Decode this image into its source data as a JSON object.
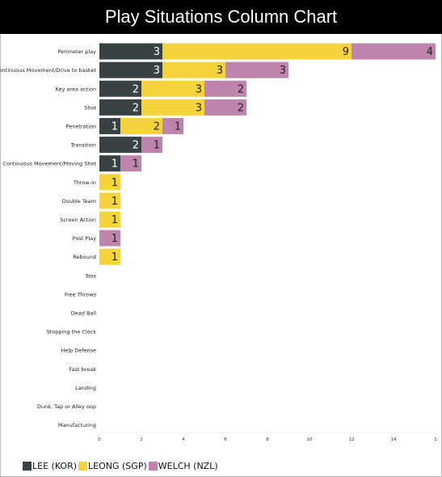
{
  "chart_data": {
    "type": "bar",
    "orientation": "horizontal",
    "stacked": true,
    "title": "Play Situations Column Chart",
    "categories": [
      "Perimeter play",
      "Continuous Movement/Drive to basket",
      "Key area action",
      "Shot",
      "Penetration",
      "Transition",
      "Continuous Movement/Moving Shot",
      "Throw-in",
      "Double Team",
      "Screen Action",
      "Post Play",
      "Rebound",
      "Toss",
      "Free Throws",
      "Dead Ball",
      "Stopping the Clock",
      "Help Defense",
      "Fast break",
      "Landing",
      "Dunk, Tap or Alley oop",
      "Manufacturing"
    ],
    "series": [
      {
        "name": "LEE (KOR)",
        "color": "#384242",
        "text_color": "#ffffff",
        "values": [
          3,
          3,
          2,
          2,
          1,
          2,
          1,
          0,
          0,
          0,
          0,
          0,
          0,
          0,
          0,
          0,
          0,
          0,
          0,
          0,
          0
        ]
      },
      {
        "name": "LEONG (SGP)",
        "color": "#f5d33c",
        "text_color": "#222222",
        "values": [
          9,
          3,
          3,
          3,
          2,
          0,
          0,
          1,
          1,
          1,
          0,
          1,
          0,
          0,
          0,
          0,
          0,
          0,
          0,
          0,
          0
        ]
      },
      {
        "name": "WELCH (NZL)",
        "color": "#bd85ab",
        "text_color": "#222222",
        "values": [
          4,
          3,
          2,
          2,
          1,
          1,
          1,
          0,
          0,
          0,
          1,
          0,
          0,
          0,
          0,
          0,
          0,
          0,
          0,
          0,
          0
        ]
      }
    ],
    "xlim": [
      0,
      16
    ],
    "ticks": [
      0,
      2,
      4,
      6,
      8,
      10,
      12,
      14
    ],
    "last_tick_label": "1",
    "legend_position": "bottom-left",
    "grid": false
  }
}
